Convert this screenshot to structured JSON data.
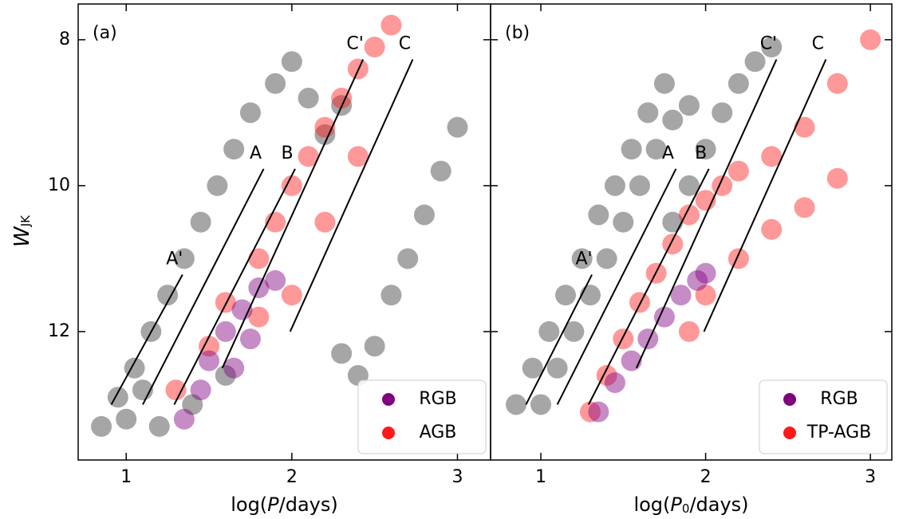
{
  "chart_data": [
    {
      "type": "scatter",
      "panel_label": "(a)",
      "xlabel": [
        "log(",
        "P",
        "/days)"
      ],
      "ylabel": [
        "W",
        "JK"
      ],
      "xlim": [
        0.71,
        3.2
      ],
      "ylim": [
        13.76,
        7.51
      ],
      "xticks": [
        1,
        2,
        3
      ],
      "yticks": [
        8,
        10,
        12
      ],
      "legend": "lower right",
      "series": [
        {
          "color": "#3a3a3a",
          "x": [
            0.85,
            0.95,
            1.05,
            1.15,
            1.25,
            1.35,
            1.45,
            1.55,
            1.65,
            1.75,
            1.9,
            2.0,
            2.1,
            2.2,
            2.3,
            1.2,
            1.4,
            1.6,
            2.5,
            2.6,
            2.7,
            2.8,
            2.9,
            3.0,
            2.4,
            2.3,
            1.0,
            1.1
          ],
          "y": [
            13.3,
            12.9,
            12.5,
            12.0,
            11.5,
            11.0,
            10.5,
            10.0,
            9.5,
            9.0,
            8.6,
            8.3,
            8.8,
            9.3,
            8.9,
            13.3,
            13.0,
            12.6,
            12.2,
            11.5,
            11.0,
            10.4,
            9.8,
            9.2,
            12.6,
            12.3,
            13.2,
            12.8
          ]
        },
        {
          "name": "AGB",
          "color": "#ff1a1a",
          "x": [
            1.3,
            1.5,
            1.6,
            1.8,
            1.9,
            2.0,
            2.1,
            2.2,
            2.3,
            2.4,
            2.5,
            2.6,
            2.0,
            2.2,
            1.8,
            2.4
          ],
          "y": [
            12.8,
            12.2,
            11.6,
            11.0,
            10.5,
            10.0,
            9.6,
            9.2,
            8.8,
            8.4,
            8.1,
            7.8,
            11.5,
            10.5,
            11.8,
            9.6
          ]
        },
        {
          "name": "RGB",
          "color": "#800080",
          "x": [
            1.35,
            1.45,
            1.5,
            1.6,
            1.7,
            1.8,
            1.9,
            1.65,
            1.75
          ],
          "y": [
            13.2,
            12.8,
            12.4,
            12.0,
            11.7,
            11.4,
            11.3,
            12.5,
            12.1
          ]
        }
      ],
      "lines": [
        {
          "label": "A'",
          "x": [
            0.91,
            1.34
          ],
          "y": [
            13.0,
            11.22
          ]
        },
        {
          "label": "A",
          "x": [
            1.1,
            1.83
          ],
          "y": [
            13.0,
            9.77
          ]
        },
        {
          "label": "B",
          "x": [
            1.29,
            2.02
          ],
          "y": [
            13.0,
            9.77
          ]
        },
        {
          "label": "C'",
          "x": [
            1.58,
            2.43
          ],
          "y": [
            12.5,
            8.27
          ]
        },
        {
          "label": "C",
          "x": [
            1.99,
            2.73
          ],
          "y": [
            12.0,
            8.27
          ]
        }
      ]
    },
    {
      "type": "scatter",
      "panel_label": "(b)",
      "xlabel": [
        "log(",
        "P",
        "0",
        "/days)"
      ],
      "xlim": [
        0.695,
        3.13
      ],
      "ylim": [
        13.76,
        7.51
      ],
      "xticks": [
        1,
        2,
        3
      ],
      "yticks": [
        8,
        10,
        12
      ],
      "legend": "lower right",
      "series": [
        {
          "color": "#3a3a3a",
          "x": [
            0.85,
            0.95,
            1.05,
            1.15,
            1.25,
            1.35,
            1.45,
            1.55,
            1.65,
            1.75,
            1.0,
            1.1,
            1.2,
            1.3,
            1.4,
            1.5,
            1.6,
            1.7,
            1.8,
            1.9,
            1.8,
            1.9,
            2.0,
            2.1,
            2.2,
            2.3,
            2.4
          ],
          "y": [
            13.0,
            12.5,
            12.0,
            11.5,
            11.0,
            10.4,
            10.0,
            9.5,
            9.0,
            8.6,
            13.0,
            12.5,
            12.0,
            11.5,
            11.0,
            10.5,
            10.0,
            9.5,
            9.1,
            8.9,
            10.5,
            10.0,
            9.5,
            9.0,
            8.6,
            8.3,
            8.1
          ]
        },
        {
          "name": "TP-AGB",
          "color": "#ff1a1a",
          "x": [
            1.3,
            1.4,
            1.5,
            1.6,
            1.7,
            1.8,
            1.9,
            2.0,
            2.1,
            2.2,
            2.4,
            2.6,
            2.8,
            3.0,
            2.2,
            2.4,
            2.6,
            2.8,
            2.0,
            1.9
          ],
          "y": [
            13.1,
            12.6,
            12.1,
            11.6,
            11.2,
            10.8,
            10.4,
            10.2,
            10.0,
            9.8,
            9.6,
            9.2,
            8.6,
            8.0,
            11.0,
            10.6,
            10.3,
            9.9,
            11.5,
            12.0
          ]
        },
        {
          "name": "RGB",
          "color": "#800080",
          "x": [
            1.35,
            1.45,
            1.55,
            1.65,
            1.75,
            1.85,
            1.95,
            2.0
          ],
          "y": [
            13.1,
            12.7,
            12.4,
            12.1,
            11.8,
            11.5,
            11.3,
            11.2
          ]
        }
      ],
      "lines": [
        {
          "label": "A'",
          "x": [
            0.91,
            1.31
          ],
          "y": [
            13.0,
            11.22
          ]
        },
        {
          "label": "A",
          "x": [
            1.1,
            1.82
          ],
          "y": [
            13.0,
            9.77
          ]
        },
        {
          "label": "B",
          "x": [
            1.29,
            2.02
          ],
          "y": [
            13.0,
            9.77
          ]
        },
        {
          "label": "C'",
          "x": [
            1.58,
            2.43
          ],
          "y": [
            12.5,
            8.27
          ]
        },
        {
          "label": "C",
          "x": [
            1.99,
            2.73
          ],
          "y": [
            12.0,
            8.27
          ]
        }
      ]
    }
  ]
}
